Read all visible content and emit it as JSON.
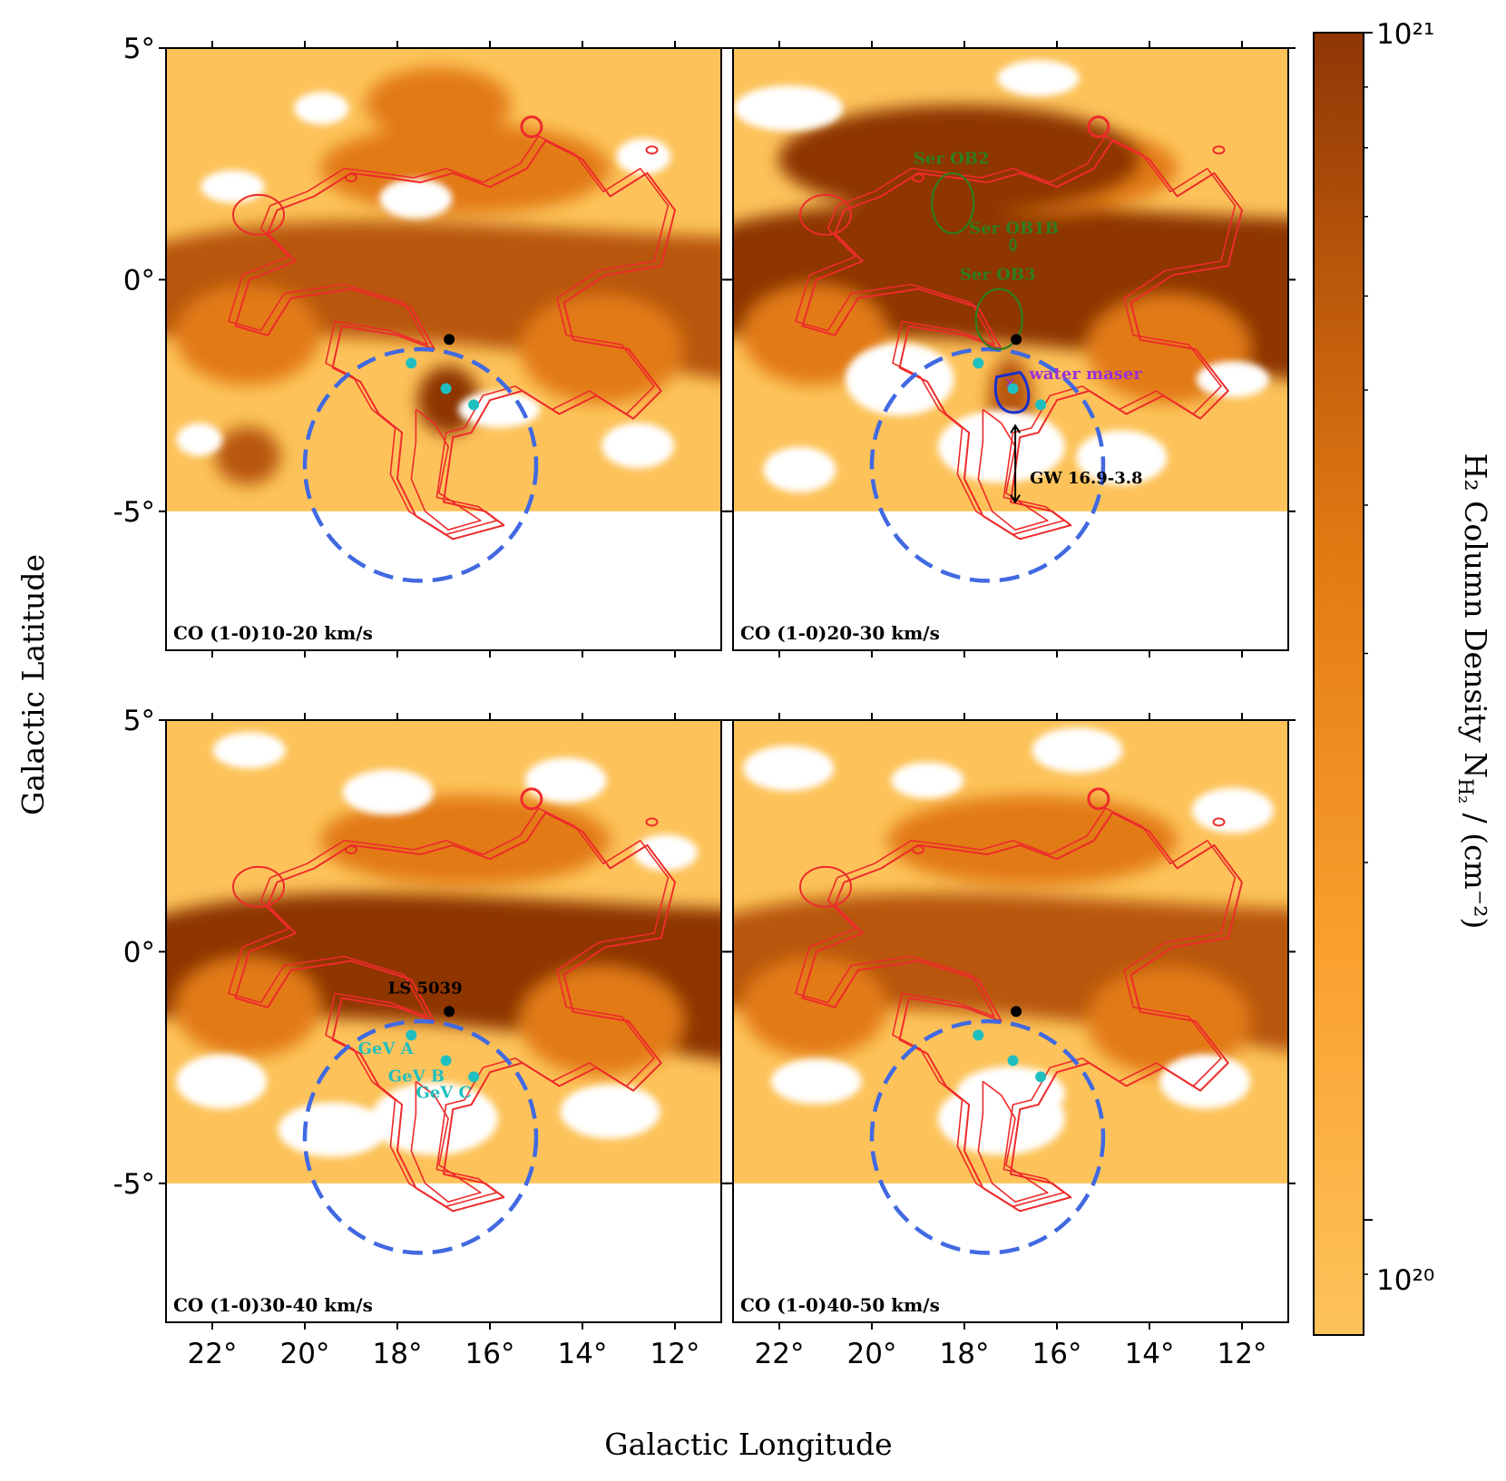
{
  "chart_data": {
    "type": "heatmap",
    "xlabel": "Galactic Longitude",
    "ylabel": "Galactic Latitude",
    "xlim": [
      23,
      11
    ],
    "ylim": [
      -8,
      5
    ],
    "xticks": [
      22,
      20,
      18,
      16,
      14,
      12
    ],
    "xtick_labels": [
      "22°",
      "20°",
      "18°",
      "16°",
      "14°",
      "12°"
    ],
    "yticks": [
      5,
      0,
      -5
    ],
    "ytick_labels": [
      "5°",
      "0°",
      "-5°"
    ],
    "colorbar": {
      "label_text": "H₂ Column Density  N",
      "label_sub": "H₂",
      "label_unit": " / (cm⁻²)",
      "min_label": "10²⁰",
      "max_label": "10²¹",
      "range": [
        8e+19,
        1e+21
      ],
      "scale": "log",
      "colors": [
        "#fdc35a",
        "#fa9f2e",
        "#e27a13",
        "#b8560a",
        "#8e3606"
      ]
    },
    "panels": [
      {
        "label": "CO (1-0)10-20 km/s",
        "velocity_range": [
          10,
          20
        ]
      },
      {
        "label": "CO (1-0)20-30 km/s",
        "velocity_range": [
          20,
          30
        ]
      },
      {
        "label": "CO (1-0)30-40 km/s",
        "velocity_range": [
          30,
          40
        ]
      },
      {
        "label": "CO (1-0)40-50 km/s",
        "velocity_range": [
          40,
          50
        ]
      }
    ],
    "sources": {
      "ls5039": {
        "name": "LS 5039",
        "l": 16.88,
        "b": -1.29,
        "color": "#000000"
      },
      "gev": [
        {
          "name": "GeV A",
          "l": 17.7,
          "b": -1.8
        },
        {
          "name": "GeV B",
          "l": 16.95,
          "b": -2.35
        },
        {
          "name": "GeV C",
          "l": 16.35,
          "b": -2.7
        }
      ],
      "gev_color": "#1fbfbf",
      "tev_circle": {
        "center_l": 17.5,
        "center_b": -4.0,
        "radius_deg": 2.5,
        "color": "#4169e1"
      },
      "ob_associations": [
        {
          "name": "Ser OB2",
          "l": 18.25,
          "b": 1.65,
          "rl": 0.45,
          "rb": 0.65
        },
        {
          "name": "Ser OB1B",
          "l": 16.95,
          "b": 0.75,
          "rl": 0.06,
          "rb": 0.12
        },
        {
          "name": "Ser OB3",
          "l": 17.25,
          "b": -0.85,
          "rl": 0.5,
          "rb": 0.65
        }
      ],
      "ob_color": "#2e7d1e",
      "water_maser": {
        "name": "water maser",
        "l": 16.95,
        "b": -2.2,
        "color": "#9b30d9"
      },
      "gw": {
        "name": "GW 16.9-3.8",
        "l": 16.9,
        "b": -3.8
      }
    }
  }
}
